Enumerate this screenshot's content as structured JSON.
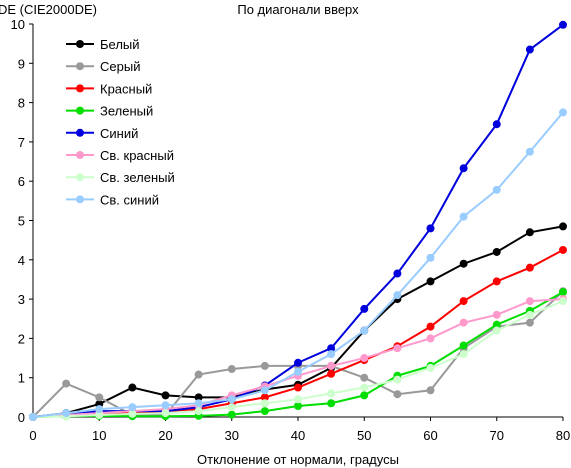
{
  "chart_data": {
    "type": "line",
    "title": "По диагонали вверх",
    "ylabel": "DE (CIE2000DE)",
    "xlabel": "Отклонение от нормали, градусы",
    "xlim": [
      0,
      80
    ],
    "ylim": [
      0,
      10
    ],
    "x_ticks": [
      0,
      10,
      20,
      30,
      40,
      50,
      60,
      70,
      80
    ],
    "y_ticks": [
      0,
      1,
      2,
      3,
      4,
      5,
      6,
      7,
      8,
      9,
      10
    ],
    "grid": false,
    "legend_position": "top-left",
    "x": [
      0,
      5,
      10,
      15,
      20,
      25,
      30,
      35,
      40,
      45,
      50,
      55,
      60,
      65,
      70,
      75,
      80
    ],
    "series": [
      {
        "name": "Белый",
        "color": "#000000",
        "values": [
          0,
          0.1,
          0.33,
          0.75,
          0.55,
          0.5,
          0.5,
          0.7,
          0.82,
          1.25,
          2.2,
          3.0,
          3.45,
          3.9,
          4.2,
          4.7,
          4.85
        ]
      },
      {
        "name": "Серый",
        "color": "#999999",
        "values": [
          0,
          0.85,
          0.5,
          0.05,
          0.05,
          1.08,
          1.22,
          1.3,
          1.3,
          1.3,
          1.0,
          0.58,
          0.68,
          1.75,
          2.3,
          2.4,
          3.2
        ]
      },
      {
        "name": "Красный",
        "color": "#ff0000",
        "values": [
          0,
          0.05,
          0.08,
          0.1,
          0.15,
          0.2,
          0.35,
          0.5,
          0.75,
          1.1,
          1.45,
          1.8,
          2.3,
          2.95,
          3.45,
          3.8,
          4.25
        ]
      },
      {
        "name": "Зеленый",
        "color": "#00dd00",
        "values": [
          0,
          0.02,
          0.03,
          0.02,
          0.02,
          0.03,
          0.06,
          0.15,
          0.28,
          0.35,
          0.55,
          1.05,
          1.3,
          1.82,
          2.35,
          2.7,
          3.18
        ]
      },
      {
        "name": "Синий",
        "color": "#0000dd",
        "values": [
          0,
          0.08,
          0.15,
          0.15,
          0.15,
          0.25,
          0.45,
          0.8,
          1.38,
          1.75,
          2.75,
          3.65,
          4.8,
          6.33,
          7.45,
          9.35,
          9.98
        ]
      },
      {
        "name": "Св. красный",
        "color": "#ff99cc",
        "values": [
          0,
          0.05,
          0.1,
          0.15,
          0.2,
          0.3,
          0.55,
          0.78,
          1.05,
          1.3,
          1.5,
          1.75,
          2.0,
          2.4,
          2.6,
          2.95,
          3.0
        ]
      },
      {
        "name": "Св. зеленый",
        "color": "#ccffcc",
        "values": [
          0,
          0.02,
          0.05,
          0.08,
          0.1,
          0.15,
          0.25,
          0.35,
          0.45,
          0.6,
          0.75,
          0.95,
          1.25,
          1.6,
          2.2,
          2.6,
          2.95
        ]
      },
      {
        "name": "Св. синий",
        "color": "#99ccff",
        "values": [
          0,
          0.1,
          0.2,
          0.25,
          0.3,
          0.35,
          0.45,
          0.68,
          1.15,
          1.6,
          2.2,
          3.1,
          4.05,
          5.1,
          5.78,
          6.75,
          7.75
        ]
      }
    ]
  }
}
